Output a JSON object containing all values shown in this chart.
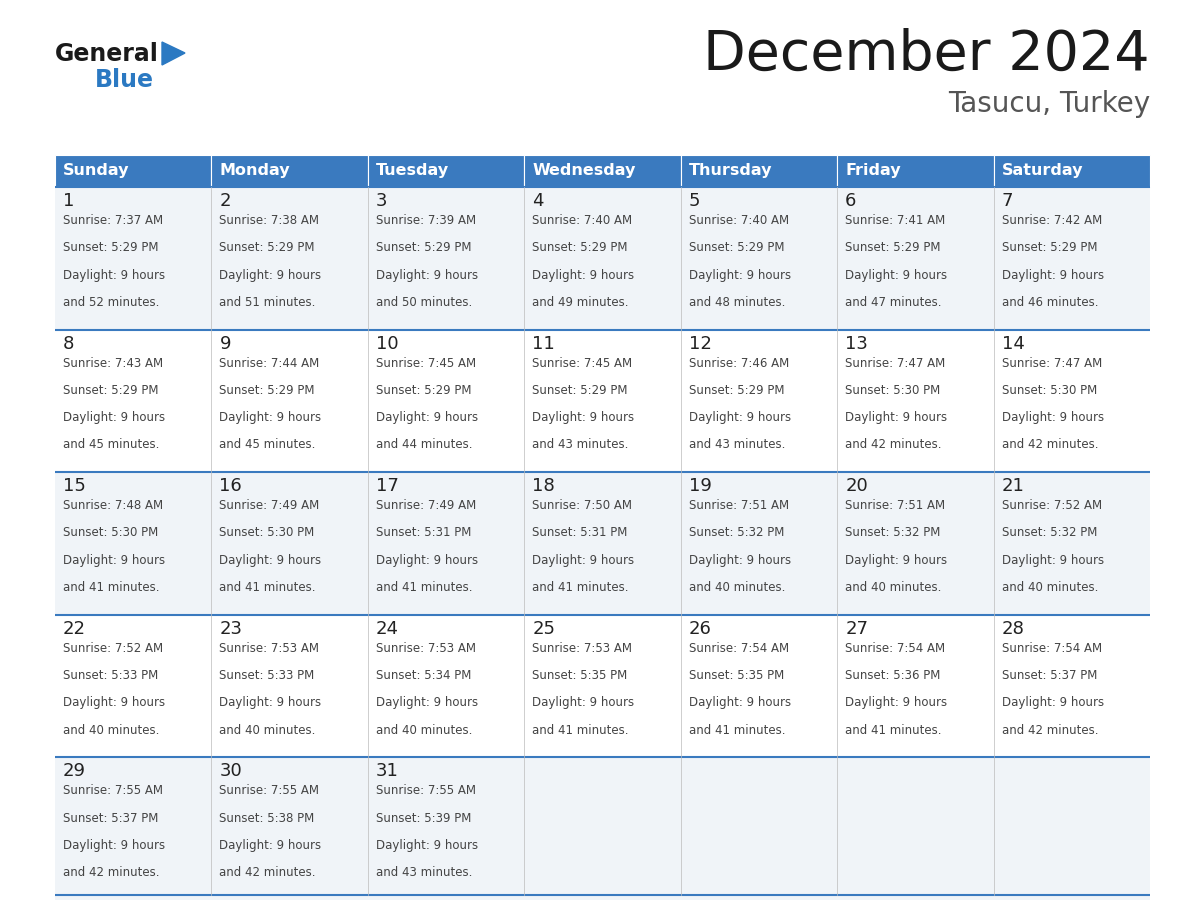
{
  "title": "December 2024",
  "subtitle": "Tasucu, Turkey",
  "header_bg": "#3a7abf",
  "header_text_color": "#ffffff",
  "days_of_week": [
    "Sunday",
    "Monday",
    "Tuesday",
    "Wednesday",
    "Thursday",
    "Friday",
    "Saturday"
  ],
  "weeks": [
    [
      {
        "day": 1,
        "sunrise": "7:37 AM",
        "sunset": "5:29 PM",
        "daylight_hours": 9,
        "daylight_minutes": 52
      },
      {
        "day": 2,
        "sunrise": "7:38 AM",
        "sunset": "5:29 PM",
        "daylight_hours": 9,
        "daylight_minutes": 51
      },
      {
        "day": 3,
        "sunrise": "7:39 AM",
        "sunset": "5:29 PM",
        "daylight_hours": 9,
        "daylight_minutes": 50
      },
      {
        "day": 4,
        "sunrise": "7:40 AM",
        "sunset": "5:29 PM",
        "daylight_hours": 9,
        "daylight_minutes": 49
      },
      {
        "day": 5,
        "sunrise": "7:40 AM",
        "sunset": "5:29 PM",
        "daylight_hours": 9,
        "daylight_minutes": 48
      },
      {
        "day": 6,
        "sunrise": "7:41 AM",
        "sunset": "5:29 PM",
        "daylight_hours": 9,
        "daylight_minutes": 47
      },
      {
        "day": 7,
        "sunrise": "7:42 AM",
        "sunset": "5:29 PM",
        "daylight_hours": 9,
        "daylight_minutes": 46
      }
    ],
    [
      {
        "day": 8,
        "sunrise": "7:43 AM",
        "sunset": "5:29 PM",
        "daylight_hours": 9,
        "daylight_minutes": 45
      },
      {
        "day": 9,
        "sunrise": "7:44 AM",
        "sunset": "5:29 PM",
        "daylight_hours": 9,
        "daylight_minutes": 45
      },
      {
        "day": 10,
        "sunrise": "7:45 AM",
        "sunset": "5:29 PM",
        "daylight_hours": 9,
        "daylight_minutes": 44
      },
      {
        "day": 11,
        "sunrise": "7:45 AM",
        "sunset": "5:29 PM",
        "daylight_hours": 9,
        "daylight_minutes": 43
      },
      {
        "day": 12,
        "sunrise": "7:46 AM",
        "sunset": "5:29 PM",
        "daylight_hours": 9,
        "daylight_minutes": 43
      },
      {
        "day": 13,
        "sunrise": "7:47 AM",
        "sunset": "5:30 PM",
        "daylight_hours": 9,
        "daylight_minutes": 42
      },
      {
        "day": 14,
        "sunrise": "7:47 AM",
        "sunset": "5:30 PM",
        "daylight_hours": 9,
        "daylight_minutes": 42
      }
    ],
    [
      {
        "day": 15,
        "sunrise": "7:48 AM",
        "sunset": "5:30 PM",
        "daylight_hours": 9,
        "daylight_minutes": 41
      },
      {
        "day": 16,
        "sunrise": "7:49 AM",
        "sunset": "5:30 PM",
        "daylight_hours": 9,
        "daylight_minutes": 41
      },
      {
        "day": 17,
        "sunrise": "7:49 AM",
        "sunset": "5:31 PM",
        "daylight_hours": 9,
        "daylight_minutes": 41
      },
      {
        "day": 18,
        "sunrise": "7:50 AM",
        "sunset": "5:31 PM",
        "daylight_hours": 9,
        "daylight_minutes": 41
      },
      {
        "day": 19,
        "sunrise": "7:51 AM",
        "sunset": "5:32 PM",
        "daylight_hours": 9,
        "daylight_minutes": 40
      },
      {
        "day": 20,
        "sunrise": "7:51 AM",
        "sunset": "5:32 PM",
        "daylight_hours": 9,
        "daylight_minutes": 40
      },
      {
        "day": 21,
        "sunrise": "7:52 AM",
        "sunset": "5:32 PM",
        "daylight_hours": 9,
        "daylight_minutes": 40
      }
    ],
    [
      {
        "day": 22,
        "sunrise": "7:52 AM",
        "sunset": "5:33 PM",
        "daylight_hours": 9,
        "daylight_minutes": 40
      },
      {
        "day": 23,
        "sunrise": "7:53 AM",
        "sunset": "5:33 PM",
        "daylight_hours": 9,
        "daylight_minutes": 40
      },
      {
        "day": 24,
        "sunrise": "7:53 AM",
        "sunset": "5:34 PM",
        "daylight_hours": 9,
        "daylight_minutes": 40
      },
      {
        "day": 25,
        "sunrise": "7:53 AM",
        "sunset": "5:35 PM",
        "daylight_hours": 9,
        "daylight_minutes": 41
      },
      {
        "day": 26,
        "sunrise": "7:54 AM",
        "sunset": "5:35 PM",
        "daylight_hours": 9,
        "daylight_minutes": 41
      },
      {
        "day": 27,
        "sunrise": "7:54 AM",
        "sunset": "5:36 PM",
        "daylight_hours": 9,
        "daylight_minutes": 41
      },
      {
        "day": 28,
        "sunrise": "7:54 AM",
        "sunset": "5:37 PM",
        "daylight_hours": 9,
        "daylight_minutes": 42
      }
    ],
    [
      {
        "day": 29,
        "sunrise": "7:55 AM",
        "sunset": "5:37 PM",
        "daylight_hours": 9,
        "daylight_minutes": 42
      },
      {
        "day": 30,
        "sunrise": "7:55 AM",
        "sunset": "5:38 PM",
        "daylight_hours": 9,
        "daylight_minutes": 42
      },
      {
        "day": 31,
        "sunrise": "7:55 AM",
        "sunset": "5:39 PM",
        "daylight_hours": 9,
        "daylight_minutes": 43
      },
      null,
      null,
      null,
      null
    ]
  ],
  "cell_bg_white": "#ffffff",
  "cell_bg_gray": "#f0f4f8",
  "day_number_color": "#222222",
  "info_text_color": "#444444",
  "line_color": "#3a7abf",
  "logo_general_color": "#1a1a1a",
  "logo_blue_color": "#2b79c2"
}
